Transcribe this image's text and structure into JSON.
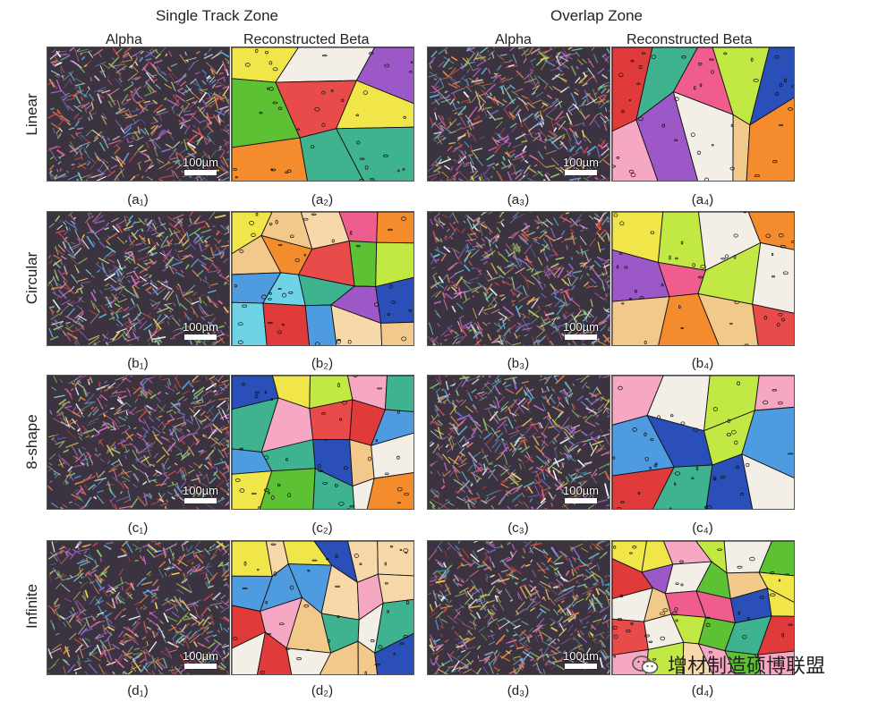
{
  "zones": [
    {
      "title": "Single Track Zone",
      "columns": [
        "Alpha",
        "Reconstructed Beta"
      ]
    },
    {
      "title": "Overlap Zone",
      "columns": [
        "Alpha",
        "Reconstructed Beta"
      ]
    }
  ],
  "rows": [
    "Linear",
    "Circular",
    "8-shape",
    "Infinite"
  ],
  "scale_label": "100µm",
  "captions": [
    [
      "(a₁)",
      "(a₂)",
      "(a₃)",
      "(a₄)"
    ],
    [
      "(b₁)",
      "(b₂)",
      "(b₃)",
      "(b₄)"
    ],
    [
      "(c₁)",
      "(c₂)",
      "(c₃)",
      "(c₄)"
    ],
    [
      "(d₁)",
      "(d₂)",
      "(d₃)",
      "(d₄)"
    ]
  ],
  "watermark": {
    "text": "增材制造硕博联盟",
    "icon": "wechat-icon"
  },
  "colors": {
    "beta_palette": [
      "#f48b2c",
      "#f2c98a",
      "#5cc233",
      "#e94b4b",
      "#9c58c6",
      "#f6a7c3",
      "#ef5d8e",
      "#4f9be0",
      "#f0e64a",
      "#6fd3e8",
      "#f3eee6",
      "#3fb28f",
      "#2b4fb8",
      "#e03a3a",
      "#f7d8a8",
      "#c2e843"
    ],
    "alpha_palette": [
      "#e76f9a",
      "#5bb3e6",
      "#9ad46b",
      "#f3d35a",
      "#c86ad8",
      "#ee8c4a",
      "#7fd1c1",
      "#ffffff",
      "#8b6fd8",
      "#d94545"
    ]
  }
}
